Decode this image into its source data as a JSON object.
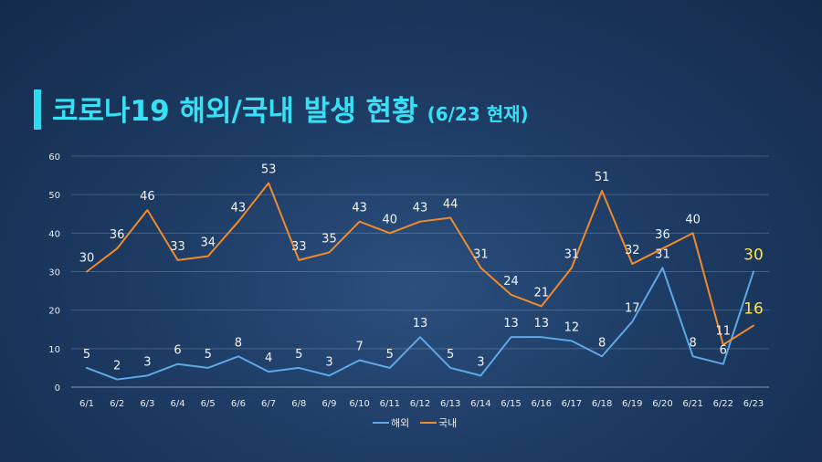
{
  "header": {
    "title": "코로나19 해외/국내 발생 현황",
    "subtitle": "(6/23 현재)"
  },
  "colors": {
    "background": "#1d3b63",
    "title": "#38e0f5",
    "title_bar": "#2fd8f0",
    "overseas_line": "#5ea8e6",
    "domestic_line": "#f08a2a",
    "highlight_label": "#ffe14a"
  },
  "chart_data": {
    "type": "line",
    "categories": [
      "6/1",
      "6/2",
      "6/3",
      "6/4",
      "6/5",
      "6/6",
      "6/7",
      "6/8",
      "6/9",
      "6/10",
      "6/11",
      "6/12",
      "6/13",
      "6/14",
      "6/15",
      "6/16",
      "6/17",
      "6/18",
      "6/19",
      "6/20",
      "6/21",
      "6/22",
      "6/23"
    ],
    "series": [
      {
        "name": "해외",
        "color": "#5ea8e6",
        "values": [
          5,
          2,
          3,
          6,
          5,
          8,
          4,
          5,
          3,
          7,
          5,
          13,
          5,
          3,
          13,
          13,
          12,
          8,
          17,
          31,
          8,
          6,
          30
        ]
      },
      {
        "name": "국내",
        "color": "#f08a2a",
        "values": [
          30,
          36,
          46,
          33,
          34,
          43,
          53,
          33,
          35,
          43,
          40,
          43,
          44,
          31,
          24,
          21,
          31,
          51,
          32,
          36,
          40,
          11,
          16
        ]
      }
    ],
    "ylim": [
      0,
      60
    ],
    "yticks": [
      0,
      10,
      20,
      30,
      40,
      50,
      60
    ],
    "grid": true,
    "legend": "bottom-center",
    "title": "코로나19 해외/국내 발생 현황",
    "xlabel": "",
    "ylabel": ""
  }
}
